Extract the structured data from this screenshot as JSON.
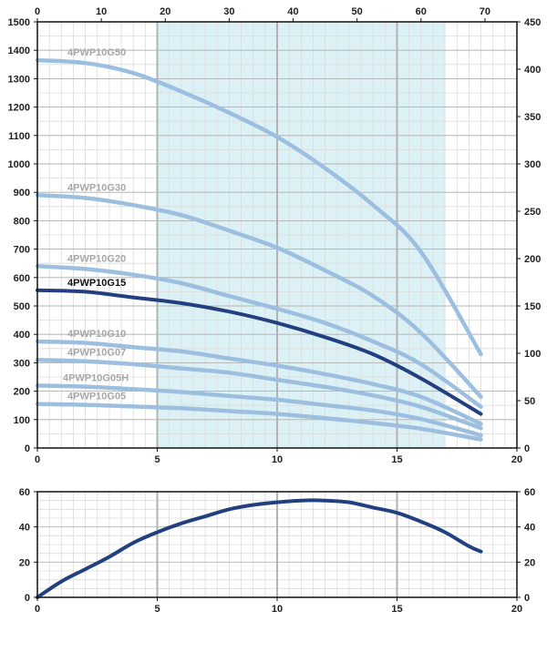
{
  "colors": {
    "highlight_curve": "#22407f",
    "other_curve": "#9cbfe0",
    "label_grey": "#a8a8a8",
    "label_dark": "#111111",
    "band_fill": "#dcf1f5",
    "grid_major": "#b3b3b3",
    "grid_minor": "#dcdcdc"
  },
  "chart_data": [
    {
      "type": "line",
      "x_range": [
        0,
        20
      ],
      "x_ticks": [
        "0",
        "5",
        "10",
        "15",
        "20"
      ],
      "y_left_range": [
        0,
        1500
      ],
      "y_left_ticks": [
        "0",
        "100",
        "200",
        "300",
        "400",
        "500",
        "600",
        "700",
        "800",
        "900",
        "1000",
        "1100",
        "1200",
        "1300",
        "1400",
        "1500"
      ],
      "y_right_range": [
        0,
        450
      ],
      "y_right_ticks": [
        "0",
        "50",
        "100",
        "150",
        "200",
        "250",
        "300",
        "350",
        "400",
        "450"
      ],
      "x_top_range": [
        0,
        75
      ],
      "x_top_ticks": [
        "0",
        "10",
        "20",
        "30",
        "40",
        "50",
        "60",
        "70"
      ],
      "highlight_band_x": [
        5,
        17
      ],
      "grid": true,
      "series": [
        {
          "name": "4PWP10G50",
          "highlight": false,
          "x": [
            0,
            2,
            4,
            6,
            8,
            10,
            12,
            14,
            16,
            18.5
          ],
          "y": [
            1365,
            1355,
            1320,
            1255,
            1180,
            1095,
            985,
            855,
            690,
            330
          ]
        },
        {
          "name": "4PWP10G30",
          "highlight": false,
          "x": [
            0,
            2,
            4,
            6,
            8,
            10,
            12,
            14,
            16,
            18.5
          ],
          "y": [
            890,
            880,
            855,
            820,
            765,
            705,
            625,
            535,
            405,
            180
          ]
        },
        {
          "name": "4PWP10G20",
          "highlight": false,
          "x": [
            0,
            2,
            4,
            6,
            8,
            10,
            12,
            14,
            16,
            18.5
          ],
          "y": [
            640,
            630,
            610,
            580,
            535,
            490,
            440,
            375,
            295,
            145
          ]
        },
        {
          "name": "4PWP10G15",
          "highlight": true,
          "x": [
            0,
            2,
            4,
            6,
            8,
            10,
            12,
            14,
            16,
            18.5
          ],
          "y": [
            555,
            550,
            530,
            510,
            480,
            440,
            390,
            330,
            245,
            120
          ]
        },
        {
          "name": "4PWP10G10",
          "highlight": false,
          "x": [
            0,
            2,
            4,
            6,
            8,
            10,
            12,
            14,
            16,
            18.5
          ],
          "y": [
            375,
            370,
            355,
            340,
            315,
            290,
            260,
            225,
            180,
            85
          ]
        },
        {
          "name": "4PWP10G07",
          "highlight": false,
          "x": [
            0,
            2,
            4,
            6,
            8,
            10,
            12,
            14,
            16,
            18.5
          ],
          "y": [
            310,
            305,
            295,
            280,
            265,
            240,
            215,
            185,
            145,
            70
          ]
        },
        {
          "name": "4PWP10G05H",
          "highlight": false,
          "x": [
            0,
            2,
            4,
            6,
            8,
            10,
            12,
            14,
            16,
            18.5
          ],
          "y": [
            220,
            216,
            207,
            197,
            183,
            170,
            151,
            132,
            102,
            45
          ]
        },
        {
          "name": "4PWP10G05",
          "highlight": false,
          "x": [
            0,
            2,
            4,
            6,
            8,
            10,
            12,
            14,
            16,
            18.5
          ],
          "y": [
            155,
            152,
            146,
            140,
            130,
            120,
            105,
            88,
            68,
            30
          ]
        }
      ]
    },
    {
      "type": "line",
      "x_range": [
        0,
        20
      ],
      "x_ticks": [
        "0",
        "5",
        "10",
        "15",
        "20"
      ],
      "y_range": [
        0,
        60
      ],
      "y_left_ticks": [
        "0",
        "20",
        "40",
        "60"
      ],
      "y_right_ticks": [
        "0",
        "20",
        "40",
        "60"
      ],
      "grid": true,
      "series": [
        {
          "highlight": true,
          "x": [
            0,
            1,
            2,
            3,
            4,
            5,
            6,
            7,
            8,
            9,
            10,
            11,
            12,
            13,
            14,
            15,
            16,
            17,
            18,
            18.5
          ],
          "y": [
            0,
            9,
            16,
            23,
            31,
            37,
            42,
            46,
            50,
            52.5,
            54,
            55,
            55,
            54,
            51,
            48,
            43,
            37,
            29,
            26
          ]
        }
      ]
    }
  ]
}
